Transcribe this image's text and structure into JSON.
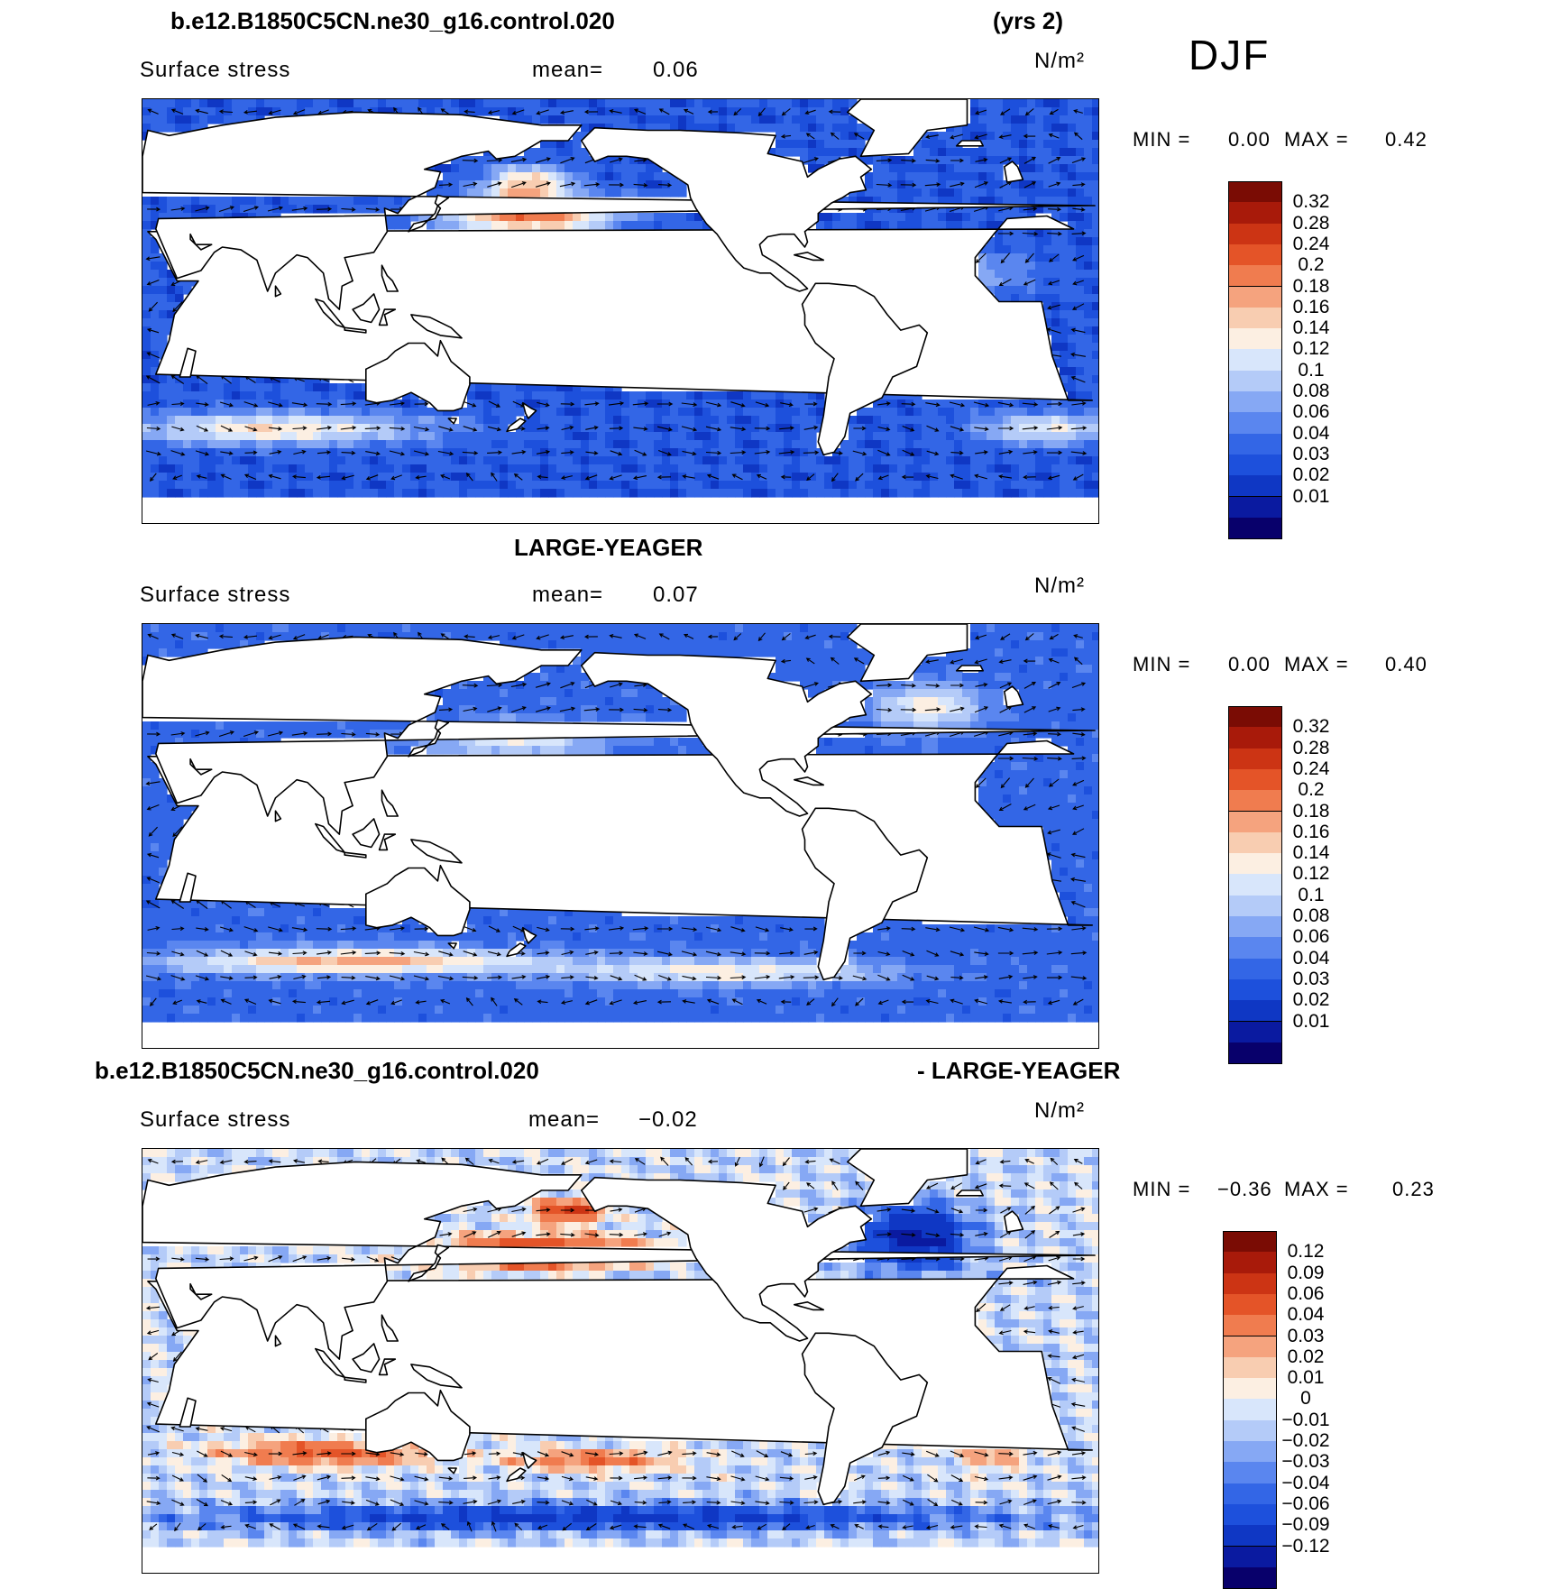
{
  "header": {
    "case_name": "b.e12.B1850C5CN.ne30_g16.control.020",
    "years": "(yrs 2)",
    "season": "DJF"
  },
  "panels": [
    {
      "title": "",
      "variable": "Surface stress",
      "mean_label": "mean=",
      "mean_value": "0.06",
      "units": "N/m²",
      "min_label": "MIN =",
      "min_value": "0.00",
      "max_label": "MAX =",
      "max_value": "0.42",
      "colorbar_colors": [
        "#08006b",
        "#0a1aa0",
        "#0f37c4",
        "#1d50dc",
        "#3366e6",
        "#5a86ef",
        "#86a8f4",
        "#b4cbf8",
        "#d8e6fb",
        "#fcefe2",
        "#f8cdb1",
        "#f5a37e",
        "#f07c4f",
        "#e45428",
        "#cc3414",
        "#a81a0a",
        "#7a0c04"
      ],
      "colorbar_labels": [
        "0.01",
        "0.02",
        "0.03",
        "0.04",
        "0.06",
        "0.08",
        "0.1",
        "0.12",
        "0.14",
        "0.16",
        "0.18",
        "0.2",
        "0.24",
        "0.28",
        "0.32"
      ]
    },
    {
      "title": "LARGE-YEAGER",
      "variable": "Surface stress",
      "mean_label": "mean=",
      "mean_value": "0.07",
      "units": "N/m²",
      "min_label": "MIN =",
      "min_value": "0.00",
      "max_label": "MAX =",
      "max_value": "0.40",
      "colorbar_colors": [
        "#08006b",
        "#0a1aa0",
        "#0f37c4",
        "#1d50dc",
        "#3366e6",
        "#5a86ef",
        "#86a8f4",
        "#b4cbf8",
        "#d8e6fb",
        "#fcefe2",
        "#f8cdb1",
        "#f5a37e",
        "#f07c4f",
        "#e45428",
        "#cc3414",
        "#a81a0a",
        "#7a0c04"
      ],
      "colorbar_labels": [
        "0.01",
        "0.02",
        "0.03",
        "0.04",
        "0.06",
        "0.08",
        "0.1",
        "0.12",
        "0.14",
        "0.16",
        "0.18",
        "0.2",
        "0.24",
        "0.28",
        "0.32"
      ]
    },
    {
      "title_left": "b.e12.B1850C5CN.ne30_g16.control.020",
      "title_right": "- LARGE-YEAGER",
      "variable": "Surface stress",
      "mean_label": "mean=",
      "mean_value": "−0.02",
      "units": "N/m²",
      "min_label": "MIN =",
      "min_value": "−0.36",
      "max_label": "MAX =",
      "max_value": "0.23",
      "colorbar_colors": [
        "#08006b",
        "#0a1aa0",
        "#0f37c4",
        "#1d50dc",
        "#3366e6",
        "#5a86ef",
        "#86a8f4",
        "#b4cbf8",
        "#d8e6fb",
        "#fcefe2",
        "#f8cdb1",
        "#f5a37e",
        "#f07c4f",
        "#e45428",
        "#cc3414",
        "#a81a0a",
        "#7a0c04"
      ],
      "colorbar_labels": [
        "−0.12",
        "−0.09",
        "−0.06",
        "−0.04",
        "−0.03",
        "−0.02",
        "−0.01",
        "0",
        "0.01",
        "0.02",
        "0.03",
        "0.04",
        "0.06",
        "0.09",
        "0.12"
      ]
    }
  ],
  "chart_data": [
    {
      "type": "heatmap",
      "title": "b.e12.B1850C5CN.ne30_g16.control.020",
      "subtitle": "Surface stress",
      "units": "N/m²",
      "mean": 0.06,
      "min": 0.0,
      "max": 0.42,
      "levels": [
        0.01,
        0.02,
        0.03,
        0.04,
        0.06,
        0.08,
        0.1,
        0.12,
        0.14,
        0.16,
        0.18,
        0.2,
        0.24,
        0.28,
        0.32
      ],
      "overlay": "wind stress vectors"
    },
    {
      "type": "heatmap",
      "title": "LARGE-YEAGER",
      "subtitle": "Surface stress",
      "units": "N/m²",
      "mean": 0.07,
      "min": 0.0,
      "max": 0.4,
      "levels": [
        0.01,
        0.02,
        0.03,
        0.04,
        0.06,
        0.08,
        0.1,
        0.12,
        0.14,
        0.16,
        0.18,
        0.2,
        0.24,
        0.28,
        0.32
      ],
      "overlay": "wind stress vectors"
    },
    {
      "type": "heatmap",
      "title": "b.e12.B1850C5CN.ne30_g16.control.020 - LARGE-YEAGER",
      "subtitle": "Surface stress",
      "units": "N/m²",
      "mean": -0.02,
      "min": -0.36,
      "max": 0.23,
      "levels": [
        -0.12,
        -0.09,
        -0.06,
        -0.04,
        -0.03,
        -0.02,
        -0.01,
        0,
        0.01,
        0.02,
        0.03,
        0.04,
        0.06,
        0.09,
        0.12
      ],
      "overlay": "wind stress difference vectors"
    }
  ]
}
